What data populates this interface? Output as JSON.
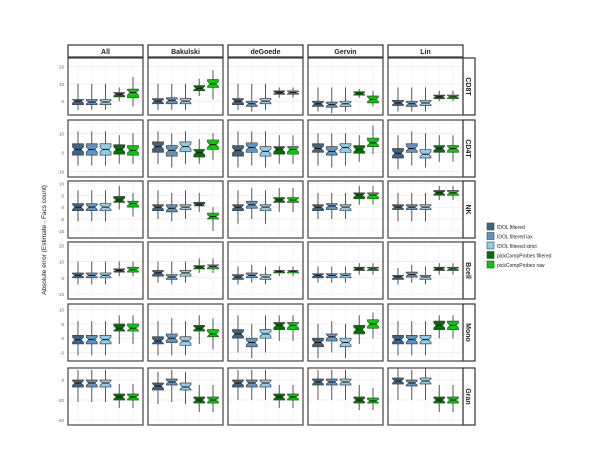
{
  "chart_data": {
    "type": "boxplot",
    "ylabel": "Absolute error (Estimate - Facs count)",
    "columns": [
      "All",
      "Bakulski",
      "deGoede",
      "Gervin",
      "Lin"
    ],
    "rows": [
      {
        "name": "CD8T",
        "ylim": [
          -8,
          25
        ],
        "ticks": [
          0,
          10,
          20
        ]
      },
      {
        "name": "CD4T",
        "ylim": [
          -13,
          17
        ],
        "ticks": [
          -10,
          0,
          10
        ]
      },
      {
        "name": "NK",
        "ylim": [
          -13,
          11
        ],
        "ticks": [
          -10,
          -5,
          0,
          5,
          10
        ]
      },
      {
        "name": "Bcell",
        "ylim": [
          -13,
          22
        ],
        "ticks": [
          -10,
          0,
          10,
          20
        ]
      },
      {
        "name": "Mono",
        "ylim": [
          -8,
          12
        ],
        "ticks": [
          -5,
          0,
          5,
          10
        ]
      },
      {
        "name": "Gran",
        "ylim": [
          -45,
          12
        ],
        "ticks": [
          -40,
          -20,
          0
        ]
      }
    ],
    "legend": {
      "placement": "right",
      "entries": [
        {
          "label": "IDOL filtered",
          "color": "#3e6383"
        },
        {
          "label": "IDOL filtered lax",
          "color": "#5f95c2"
        },
        {
          "label": "IDOL filtered strict",
          "color": "#8fcbea"
        },
        {
          "label": "pickCompProbes filtered",
          "color": "#007000"
        },
        {
          "label": "pickCompProbes raw",
          "color": "#00cc00"
        }
      ]
    },
    "box_format": "[whisker_low, q1, median, q3, whisker_high]",
    "boxes": {
      "CD8T": {
        "All": [
          [
            -5,
            -2,
            0,
            1,
            10
          ],
          [
            -5,
            -2,
            -0.5,
            1,
            10
          ],
          [
            -5,
            -2,
            -0.5,
            1,
            10
          ],
          [
            0,
            2.5,
            4,
            5,
            8
          ],
          [
            -3,
            2,
            5,
            7,
            14
          ]
        ],
        "Bakulski": [
          [
            -5,
            -1.5,
            0,
            1.5,
            10
          ],
          [
            -5,
            -1.5,
            0.5,
            2,
            10
          ],
          [
            -5,
            -1.5,
            0,
            1.5,
            10
          ],
          [
            3,
            6,
            7.5,
            9,
            13
          ],
          [
            1,
            8,
            10,
            12.5,
            18
          ]
        ],
        "deGoede": [
          [
            -5,
            -2,
            0,
            1.5,
            10
          ],
          [
            -6,
            -3,
            -1.5,
            0,
            10
          ],
          [
            -5,
            -1.5,
            0,
            1.5,
            10
          ],
          [
            2,
            4,
            5,
            6,
            8
          ],
          [
            2,
            4,
            5,
            6,
            8
          ]
        ],
        "Gervin": [
          [
            -6,
            -3,
            -1.5,
            0,
            8
          ],
          [
            -7,
            -3.5,
            -2,
            -0.5,
            8
          ],
          [
            -6,
            -3,
            -1.5,
            0,
            8
          ],
          [
            2,
            3.5,
            4.5,
            5.5,
            7
          ],
          [
            -3,
            -1,
            1,
            3,
            6
          ]
        ],
        "Lin": [
          [
            -6,
            -2.5,
            -1,
            0.5,
            8
          ],
          [
            -6,
            -3,
            -1.5,
            0,
            8
          ],
          [
            -6,
            -2.5,
            -1,
            0.5,
            8
          ],
          [
            0,
            1.5,
            2.5,
            3.5,
            6
          ],
          [
            0,
            1.5,
            2.5,
            3.5,
            6
          ]
        ]
      },
      "CD4T": {
        "All": [
          [
            -7,
            -1.5,
            1.5,
            4.5,
            11
          ],
          [
            -7,
            -1.5,
            1.5,
            4.5,
            11
          ],
          [
            -7,
            -1.5,
            1.5,
            4.5,
            11
          ],
          [
            -6,
            -1,
            1.5,
            4,
            9
          ],
          [
            -6,
            -1.5,
            1,
            3.5,
            10
          ]
        ],
        "Bakulski": [
          [
            -6,
            0,
            3,
            5.5,
            11
          ],
          [
            -8,
            -2,
            1,
            3.5,
            10
          ],
          [
            -6,
            0.5,
            3,
            5.5,
            11
          ],
          [
            -6,
            -2.5,
            0,
            1.5,
            7
          ],
          [
            -4,
            1.5,
            4,
            6.5,
            10
          ]
        ],
        "deGoede": [
          [
            -8,
            -2,
            1,
            3.5,
            11
          ],
          [
            -7,
            0,
            2.5,
            5,
            11
          ],
          [
            -8,
            -2,
            0.5,
            3,
            11
          ],
          [
            -6,
            -1,
            1.5,
            3,
            9
          ],
          [
            -6,
            -1,
            1.5,
            3,
            9
          ]
        ],
        "Gervin": [
          [
            -7,
            0,
            2,
            4.5,
            10
          ],
          [
            -8,
            -1.5,
            0.5,
            3,
            10
          ],
          [
            -7,
            0,
            2.5,
            4.5,
            10
          ],
          [
            -5,
            -0.5,
            1.5,
            3.5,
            9
          ],
          [
            -1,
            3,
            5,
            7.5,
            14
          ]
        ],
        "Lin": [
          [
            -9,
            -3,
            -0.5,
            2,
            9
          ],
          [
            -7,
            0,
            2,
            4.5,
            11
          ],
          [
            -8,
            -3,
            -1,
            1.5,
            10
          ],
          [
            -5,
            0,
            2,
            3.5,
            9
          ],
          [
            -5,
            0,
            2,
            3.5,
            9
          ]
        ]
      },
      "NK": {
        "All": [
          [
            -6,
            -1.5,
            0,
            1.5,
            7
          ],
          [
            -6,
            -1.5,
            0,
            1.5,
            7
          ],
          [
            -6,
            -1.5,
            0,
            1.5,
            7
          ],
          [
            -1,
            2,
            3,
            4.5,
            9
          ],
          [
            -4,
            0,
            1.5,
            2.5,
            6
          ]
        ],
        "Bakulski": [
          [
            -5,
            -1.5,
            0,
            1,
            7
          ],
          [
            -6,
            -2,
            -0.5,
            1,
            6
          ],
          [
            -5,
            -1,
            0,
            1,
            7
          ],
          [
            -2,
            0.5,
            1,
            2,
            6
          ],
          [
            -10,
            -5,
            -4,
            -2.5,
            0
          ]
        ],
        "deGoede": [
          [
            -7,
            -1.5,
            0,
            1,
            7
          ],
          [
            -5,
            -0.5,
            1,
            2.5,
            8
          ],
          [
            -7,
            -1.5,
            0,
            1,
            7
          ],
          [
            -2,
            2,
            3,
            4,
            8
          ],
          [
            -2,
            2,
            3,
            4,
            8
          ]
        ],
        "Gervin": [
          [
            -5,
            -1.5,
            0,
            1,
            6
          ],
          [
            -5,
            -1,
            0.5,
            1.5,
            6
          ],
          [
            -5,
            -1.5,
            0,
            1,
            6
          ],
          [
            1,
            3.5,
            5,
            6,
            9
          ],
          [
            1,
            3.5,
            5,
            6,
            9
          ]
        ],
        "Lin": [
          [
            -6,
            -1,
            0,
            1,
            6
          ],
          [
            -6,
            -1,
            0,
            1,
            6
          ],
          [
            -6,
            -1,
            0,
            1,
            6
          ],
          [
            3,
            5,
            6,
            7,
            9
          ],
          [
            3,
            5,
            6,
            7,
            9
          ]
        ]
      },
      "Bcell": {
        "All": [
          [
            -4,
            0,
            1.5,
            3,
            10
          ],
          [
            -4,
            0,
            1.5,
            3,
            10
          ],
          [
            -4,
            0,
            1.5,
            3,
            10
          ],
          [
            1,
            3.5,
            4.5,
            5.5,
            10
          ],
          [
            1,
            3.5,
            5,
            6.5,
            10
          ]
        ],
        "Bakulski": [
          [
            -3,
            1,
            3,
            4.5,
            10
          ],
          [
            -4,
            -1,
            0.5,
            2,
            10
          ],
          [
            -3,
            1,
            3,
            4.5,
            10
          ],
          [
            3,
            5.5,
            6.5,
            7.5,
            12
          ],
          [
            3,
            5.5,
            7,
            8,
            12
          ]
        ],
        "deGoede": [
          [
            -4,
            -1,
            0.5,
            2,
            7
          ],
          [
            -3,
            0,
            1.5,
            3,
            8
          ],
          [
            -4,
            -1,
            0.5,
            2,
            7
          ],
          [
            1,
            3,
            4,
            4.5,
            7
          ],
          [
            1,
            3,
            4,
            4.5,
            7
          ]
        ],
        "Gervin": [
          [
            -3,
            0,
            1.5,
            2.5,
            7
          ],
          [
            -3,
            0,
            1.5,
            2.5,
            7
          ],
          [
            -3,
            0,
            1.5,
            2.5,
            7
          ],
          [
            2,
            4.5,
            5.5,
            6.5,
            9
          ],
          [
            2,
            4.5,
            5.5,
            6.5,
            9
          ]
        ],
        "Lin": [
          [
            -4,
            -1,
            0.5,
            1.5,
            6
          ],
          [
            -3,
            0.5,
            2,
            3.5,
            8
          ],
          [
            -4,
            -1,
            0.5,
            1.5,
            7
          ],
          [
            2,
            4.5,
            5.5,
            6.5,
            9
          ],
          [
            2,
            4.5,
            5.5,
            6.5,
            9
          ]
        ]
      },
      "Mono": {
        "All": [
          [
            -6,
            -2,
            -0.5,
            1,
            6
          ],
          [
            -6,
            -2,
            -0.5,
            1,
            6
          ],
          [
            -6,
            -2,
            -0.5,
            1,
            6
          ],
          [
            -2,
            2.5,
            3.5,
            5,
            8
          ],
          [
            -2,
            2.5,
            3.5,
            5,
            8
          ]
        ],
        "Bakulski": [
          [
            -6,
            -2,
            -1,
            0.5,
            6
          ],
          [
            -6,
            -1.5,
            0,
            1.5,
            7
          ],
          [
            -6,
            -2.5,
            -1,
            0.5,
            6
          ],
          [
            -2,
            2.5,
            3.5,
            4.5,
            8
          ],
          [
            -4,
            0.5,
            1.5,
            3,
            7
          ]
        ],
        "deGoede": [
          [
            -5,
            0,
            1.5,
            3,
            8
          ],
          [
            -7,
            -3,
            -1.5,
            0,
            5
          ],
          [
            -5,
            0,
            1.5,
            3,
            8
          ],
          [
            -1,
            3,
            4.5,
            5.5,
            8
          ],
          [
            -1,
            3,
            4.5,
            5.5,
            8
          ]
        ],
        "Gervin": [
          [
            -7,
            -3,
            -1.5,
            0,
            5
          ],
          [
            -5,
            -1,
            0.5,
            1.5,
            6
          ],
          [
            -7,
            -3,
            -1.5,
            0,
            5
          ],
          [
            -2,
            1.5,
            3,
            4.5,
            8
          ],
          [
            0,
            3.5,
            5,
            6.5,
            9
          ]
        ],
        "Lin": [
          [
            -6,
            -2,
            -0.5,
            1,
            6
          ],
          [
            -6,
            -2,
            -0.5,
            1,
            6
          ],
          [
            -6,
            -2,
            -0.5,
            1,
            6
          ],
          [
            0,
            3,
            4.5,
            6,
            8
          ],
          [
            0,
            3,
            4.5,
            6,
            8
          ]
        ]
      },
      "Gran": {
        "All": [
          [
            -22,
            -7,
            -3,
            0,
            10
          ],
          [
            -22,
            -7,
            -3,
            0,
            10
          ],
          [
            -22,
            -7,
            -3,
            0,
            10
          ],
          [
            -28,
            -20,
            -17,
            -14,
            -4
          ],
          [
            -28,
            -20,
            -17,
            -14,
            -4
          ]
        ],
        "Bakulski": [
          [
            -24,
            -10,
            -6,
            -3,
            8
          ],
          [
            -22,
            -5,
            -2,
            1,
            10
          ],
          [
            -24,
            -10,
            -7,
            -3,
            8
          ],
          [
            -32,
            -23,
            -20,
            -17,
            -5
          ],
          [
            -32,
            -23,
            -20,
            -17,
            -5
          ]
        ],
        "deGoede": [
          [
            -20,
            -7,
            -3,
            0,
            10
          ],
          [
            -20,
            -7,
            -3,
            0,
            10
          ],
          [
            -20,
            -7,
            -3,
            0,
            10
          ],
          [
            -28,
            -20,
            -17,
            -14,
            -5
          ],
          [
            -28,
            -20,
            -17,
            -14,
            -5
          ]
        ],
        "Gervin": [
          [
            -20,
            -5,
            -2,
            1,
            10
          ],
          [
            -20,
            -5,
            -2,
            1,
            10
          ],
          [
            -20,
            -5,
            -2,
            1,
            10
          ],
          [
            -30,
            -23,
            -20,
            -17,
            -5
          ],
          [
            -30,
            -23,
            -21,
            -18,
            -8
          ]
        ],
        "Lin": [
          [
            -20,
            -4,
            -1,
            2,
            12
          ],
          [
            -20,
            -6,
            -3,
            0,
            10
          ],
          [
            -20,
            -4,
            -1,
            2,
            12
          ],
          [
            -32,
            -23,
            -20,
            -17,
            -5
          ],
          [
            -32,
            -23,
            -20,
            -17,
            -5
          ]
        ]
      }
    }
  }
}
